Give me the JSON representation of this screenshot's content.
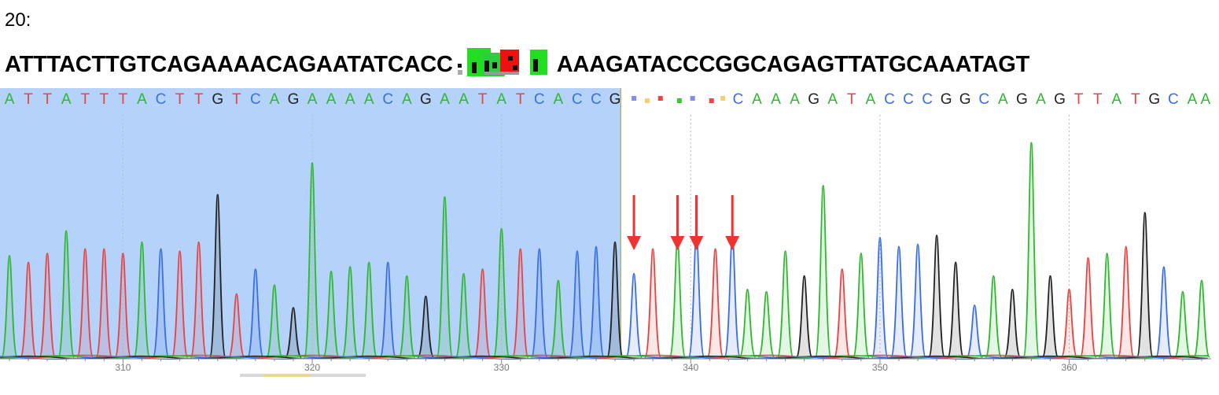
{
  "sample_label": "20:",
  "sequence": {
    "left": "ATTTACTTGTCAGAAAACAGAATATCACC",
    "right": "AAAGATACCCGGCAGAGTTATGCAAATAGT"
  },
  "colors": {
    "A": "#2eb82e",
    "C": "#3a6fe0",
    "G": "#222222",
    "T": "#e64444",
    "highlight": "#b5d3fa",
    "arrow": "#ee3333"
  },
  "chart_data": {
    "type": "line",
    "title": "",
    "xlabel": "",
    "ylabel": "",
    "xlim": [
      303.5,
      367.5
    ],
    "ylim": [
      0,
      1
    ],
    "ticks": [
      310,
      320,
      330,
      340,
      350,
      360
    ],
    "highlight_range": [
      303.5,
      336.3
    ],
    "mutation_arrows": [
      337,
      339.3,
      340.3,
      342.2
    ],
    "bases": [
      {
        "pos": 304,
        "base": "A"
      },
      {
        "pos": 305,
        "base": "T"
      },
      {
        "pos": 306,
        "base": "T"
      },
      {
        "pos": 307,
        "base": "A"
      },
      {
        "pos": 308,
        "base": "T"
      },
      {
        "pos": 309,
        "base": "T"
      },
      {
        "pos": 310,
        "base": "T"
      },
      {
        "pos": 311,
        "base": "A"
      },
      {
        "pos": 312,
        "base": "C"
      },
      {
        "pos": 313,
        "base": "T"
      },
      {
        "pos": 314,
        "base": "T"
      },
      {
        "pos": 315,
        "base": "G"
      },
      {
        "pos": 316,
        "base": "T"
      },
      {
        "pos": 317,
        "base": "C"
      },
      {
        "pos": 318,
        "base": "A"
      },
      {
        "pos": 319,
        "base": "G"
      },
      {
        "pos": 320,
        "base": "A"
      },
      {
        "pos": 321,
        "base": "A"
      },
      {
        "pos": 322,
        "base": "A"
      },
      {
        "pos": 323,
        "base": "A"
      },
      {
        "pos": 324,
        "base": "C"
      },
      {
        "pos": 325,
        "base": "A"
      },
      {
        "pos": 326,
        "base": "G"
      },
      {
        "pos": 327,
        "base": "A"
      },
      {
        "pos": 328,
        "base": "A"
      },
      {
        "pos": 329,
        "base": "T"
      },
      {
        "pos": 330,
        "base": "A"
      },
      {
        "pos": 331,
        "base": "T"
      },
      {
        "pos": 332,
        "base": "C"
      },
      {
        "pos": 333,
        "base": "A"
      },
      {
        "pos": 334,
        "base": "C"
      },
      {
        "pos": 335,
        "base": "C"
      },
      {
        "pos": 336,
        "base": "G"
      },
      {
        "pos": 342.5,
        "base": "C"
      },
      {
        "pos": 343.5,
        "base": "A"
      },
      {
        "pos": 344.5,
        "base": "A"
      },
      {
        "pos": 345.5,
        "base": "A"
      },
      {
        "pos": 346.5,
        "base": "G"
      },
      {
        "pos": 347.5,
        "base": "A"
      },
      {
        "pos": 348.5,
        "base": "T"
      },
      {
        "pos": 349.5,
        "base": "A"
      },
      {
        "pos": 350.5,
        "base": "C"
      },
      {
        "pos": 351.5,
        "base": "C"
      },
      {
        "pos": 352.5,
        "base": "C"
      },
      {
        "pos": 353.5,
        "base": "G"
      },
      {
        "pos": 354.5,
        "base": "G"
      },
      {
        "pos": 355.5,
        "base": "C"
      },
      {
        "pos": 356.5,
        "base": "A"
      },
      {
        "pos": 357.5,
        "base": "G"
      },
      {
        "pos": 358.5,
        "base": "A"
      },
      {
        "pos": 359.5,
        "base": "G"
      },
      {
        "pos": 360.5,
        "base": "T"
      },
      {
        "pos": 361.5,
        "base": "T"
      },
      {
        "pos": 362.5,
        "base": "A"
      },
      {
        "pos": 363.5,
        "base": "T"
      },
      {
        "pos": 364.5,
        "base": "G"
      },
      {
        "pos": 365.5,
        "base": "C"
      },
      {
        "pos": 366.5,
        "base": "A"
      },
      {
        "pos": 367.2,
        "base": "A"
      }
    ],
    "peaks": [
      {
        "pos": 304.0,
        "base": "A",
        "h": 0.45
      },
      {
        "pos": 305.0,
        "base": "T",
        "h": 0.42
      },
      {
        "pos": 306.0,
        "base": "T",
        "h": 0.46
      },
      {
        "pos": 307.0,
        "base": "A",
        "h": 0.56
      },
      {
        "pos": 308.0,
        "base": "T",
        "h": 0.48
      },
      {
        "pos": 309.0,
        "base": "T",
        "h": 0.48
      },
      {
        "pos": 310.0,
        "base": "T",
        "h": 0.46
      },
      {
        "pos": 311.0,
        "base": "A",
        "h": 0.51
      },
      {
        "pos": 312.0,
        "base": "C",
        "h": 0.48
      },
      {
        "pos": 313.0,
        "base": "T",
        "h": 0.47
      },
      {
        "pos": 314.0,
        "base": "T",
        "h": 0.51
      },
      {
        "pos": 315.0,
        "base": "G",
        "h": 0.72
      },
      {
        "pos": 316.0,
        "base": "T",
        "h": 0.28
      },
      {
        "pos": 317.0,
        "base": "C",
        "h": 0.39
      },
      {
        "pos": 318.0,
        "base": "A",
        "h": 0.32
      },
      {
        "pos": 319.0,
        "base": "G",
        "h": 0.22
      },
      {
        "pos": 320.0,
        "base": "A",
        "h": 0.86
      },
      {
        "pos": 321.0,
        "base": "A",
        "h": 0.38
      },
      {
        "pos": 322.0,
        "base": "A",
        "h": 0.4
      },
      {
        "pos": 323.0,
        "base": "A",
        "h": 0.42
      },
      {
        "pos": 324.0,
        "base": "C",
        "h": 0.42
      },
      {
        "pos": 325.0,
        "base": "A",
        "h": 0.36
      },
      {
        "pos": 326.0,
        "base": "G",
        "h": 0.27
      },
      {
        "pos": 327.0,
        "base": "A",
        "h": 0.71
      },
      {
        "pos": 328.0,
        "base": "A",
        "h": 0.37
      },
      {
        "pos": 329.0,
        "base": "T",
        "h": 0.39
      },
      {
        "pos": 330.0,
        "base": "A",
        "h": 0.57
      },
      {
        "pos": 331.0,
        "base": "T",
        "h": 0.48
      },
      {
        "pos": 332.0,
        "base": "C",
        "h": 0.48
      },
      {
        "pos": 333.0,
        "base": "A",
        "h": 0.34
      },
      {
        "pos": 334.0,
        "base": "C",
        "h": 0.47
      },
      {
        "pos": 335.0,
        "base": "C",
        "h": 0.49
      },
      {
        "pos": 336.0,
        "base": "G",
        "h": 0.51
      },
      {
        "pos": 337.0,
        "base": "C",
        "h": 0.37
      },
      {
        "pos": 338.0,
        "base": "T",
        "h": 0.48
      },
      {
        "pos": 339.3,
        "base": "A",
        "h": 0.52
      },
      {
        "pos": 340.3,
        "base": "C",
        "h": 0.55
      },
      {
        "pos": 341.3,
        "base": "T",
        "h": 0.48
      },
      {
        "pos": 342.2,
        "base": "C",
        "h": 0.54
      },
      {
        "pos": 343.0,
        "base": "A",
        "h": 0.3
      },
      {
        "pos": 344.0,
        "base": "A",
        "h": 0.29
      },
      {
        "pos": 345.0,
        "base": "A",
        "h": 0.47
      },
      {
        "pos": 346.0,
        "base": "G",
        "h": 0.36
      },
      {
        "pos": 347.0,
        "base": "A",
        "h": 0.76
      },
      {
        "pos": 348.0,
        "base": "T",
        "h": 0.39
      },
      {
        "pos": 349.0,
        "base": "A",
        "h": 0.46
      },
      {
        "pos": 350.0,
        "base": "C",
        "h": 0.53
      },
      {
        "pos": 351.0,
        "base": "C",
        "h": 0.49
      },
      {
        "pos": 352.0,
        "base": "C",
        "h": 0.5
      },
      {
        "pos": 353.0,
        "base": "G",
        "h": 0.54
      },
      {
        "pos": 354.0,
        "base": "G",
        "h": 0.42
      },
      {
        "pos": 355.0,
        "base": "C",
        "h": 0.23
      },
      {
        "pos": 356.0,
        "base": "A",
        "h": 0.36
      },
      {
        "pos": 357.0,
        "base": "G",
        "h": 0.3
      },
      {
        "pos": 358.0,
        "base": "A",
        "h": 0.95
      },
      {
        "pos": 359.0,
        "base": "G",
        "h": 0.36
      },
      {
        "pos": 360.0,
        "base": "T",
        "h": 0.3
      },
      {
        "pos": 361.0,
        "base": "T",
        "h": 0.44
      },
      {
        "pos": 362.0,
        "base": "A",
        "h": 0.46
      },
      {
        "pos": 363.0,
        "base": "T",
        "h": 0.49
      },
      {
        "pos": 364.0,
        "base": "G",
        "h": 0.64
      },
      {
        "pos": 365.0,
        "base": "C",
        "h": 0.4
      },
      {
        "pos": 366.0,
        "base": "A",
        "h": 0.29
      },
      {
        "pos": 367.0,
        "base": "A",
        "h": 0.34
      }
    ]
  }
}
